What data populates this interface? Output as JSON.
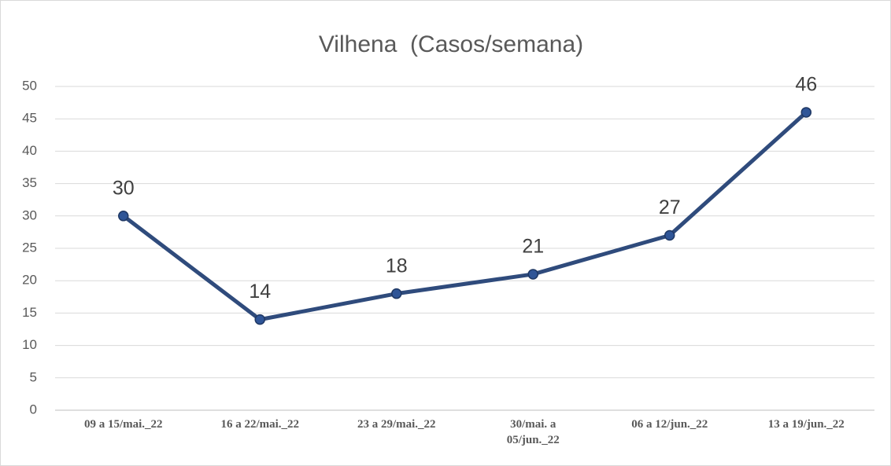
{
  "chart_data": {
    "type": "line",
    "title": "Vilhena  (Casos/semana)",
    "categories": [
      "09 a 15/mai._22",
      "16 a 22/mai._22",
      "23 a 29/mai._22",
      "30/mai. a 05/jun._22",
      "06 a 12/jun._22",
      "13 a 19/jun._22"
    ],
    "series": [
      {
        "name": "Vilhena",
        "color": "#2f4b7c",
        "values": [
          30,
          14,
          18,
          21,
          27,
          46
        ]
      }
    ],
    "ylim": [
      0,
      50
    ],
    "yticks": [
      0,
      5,
      10,
      15,
      20,
      25,
      30,
      35,
      40,
      45,
      50
    ],
    "grid": true
  }
}
